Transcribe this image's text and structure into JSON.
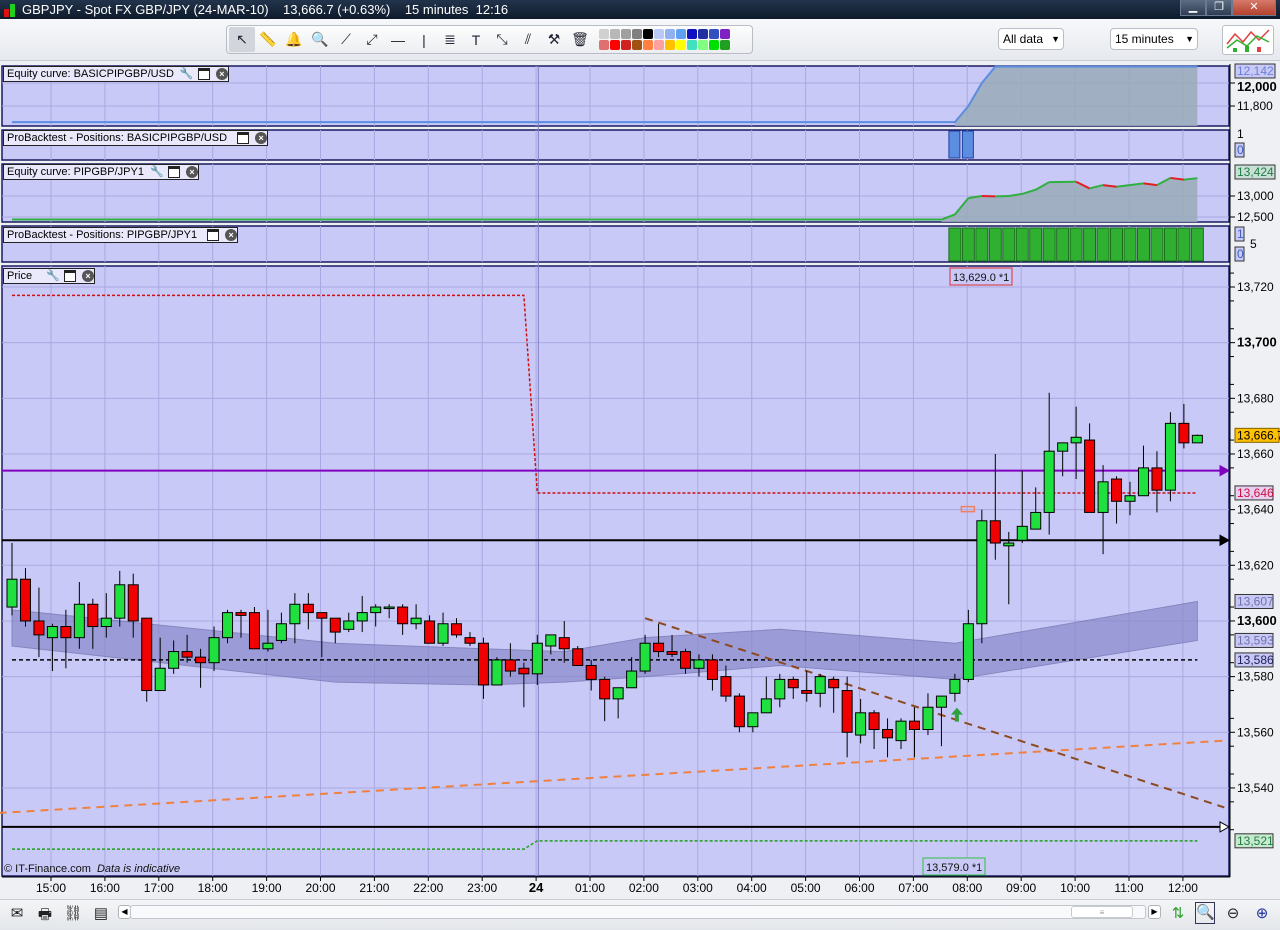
{
  "window": {
    "title": "GBPJPY - Spot FX GBP/JPY (24-MAR-10)    13,666.7 (+0.63%)    15 minutes  12:16",
    "buttons": [
      "minimize",
      "restore",
      "close"
    ]
  },
  "toolbar": {
    "tools": [
      {
        "icon": "pointer-icon",
        "glyph": "↖"
      },
      {
        "icon": "ruler-icon",
        "glyph": "📏"
      },
      {
        "icon": "alarm-bell-icon",
        "glyph": "🔔"
      },
      {
        "icon": "zoom-in-icon",
        "glyph": "🔍"
      },
      {
        "icon": "trend-line-icon",
        "glyph": "⟋"
      },
      {
        "icon": "segment-icon",
        "glyph": "⤢"
      },
      {
        "icon": "horizontal-line-icon",
        "glyph": "—"
      },
      {
        "icon": "vertical-line-icon",
        "glyph": "|"
      },
      {
        "icon": "fibonacci-icon",
        "glyph": "≣"
      },
      {
        "icon": "text-tool-icon",
        "glyph": "T"
      },
      {
        "icon": "channel-icon",
        "glyph": "⤡"
      },
      {
        "icon": "parallel-lines-icon",
        "glyph": "⫽"
      },
      {
        "icon": "tools-icon",
        "glyph": "⚒"
      },
      {
        "icon": "trash-icon",
        "glyph": "🗑"
      }
    ],
    "palette": [
      "#d0d0d0",
      "#b8b8b8",
      "#a0a0a0",
      "#808080",
      "#000000",
      "#b8c8f8",
      "#90b0f0",
      "#60a0f0",
      "#1010c0",
      "#2030a0",
      "#3050c0",
      "#8020c0",
      "#e07070",
      "#ff0000",
      "#d02020",
      "#a05010",
      "#ff8040",
      "#ffa0a0",
      "#ffc000",
      "#ffff00",
      "#40e0c0",
      "#80ff80",
      "#00e000",
      "#20a020"
    ],
    "period_select": "All data",
    "interval_select": "15 minutes"
  },
  "panels": {
    "equity1": {
      "title": "Equity curve: BASICPIPGBP/USD",
      "ticks": [
        "12,000",
        "11,800"
      ],
      "tick_values": [
        12000,
        11800
      ],
      "last_label": "12,142",
      "color": "#5b8de0",
      "values": [
        {
          "t": "14:15",
          "v": 11660
        },
        {
          "t": "07:45",
          "v": 11660
        },
        {
          "t": "08:00",
          "v": 11800
        },
        {
          "t": "08:15",
          "v": 12000
        },
        {
          "t": "08:30",
          "v": 12142
        },
        {
          "t": "12:15",
          "v": 12142
        }
      ]
    },
    "positions1": {
      "title": "ProBacktest - Positions: BASICPIPGBP/USD",
      "labels": [
        "1",
        "0"
      ],
      "color": "#5b8de0",
      "bars": [
        "07:45",
        "08:00"
      ]
    },
    "equity2": {
      "title": "Equity curve: PIPGBP/JPY1",
      "ticks": [
        "13,000",
        "12,500"
      ],
      "tick_values": [
        13000,
        12500
      ],
      "last_label": "13,424",
      "up_color": "#30b040",
      "down_color": "#e02020",
      "values": [
        {
          "t": "14:15",
          "v": 12440
        },
        {
          "t": "07:30",
          "v": 12440
        },
        {
          "t": "07:45",
          "v": 12560
        },
        {
          "t": "08:00",
          "v": 12950
        },
        {
          "t": "08:15",
          "v": 13000
        },
        {
          "t": "08:30",
          "v": 12990
        },
        {
          "t": "08:45",
          "v": 13000
        },
        {
          "t": "09:00",
          "v": 13050
        },
        {
          "t": "09:15",
          "v": 13150
        },
        {
          "t": "09:30",
          "v": 13330
        },
        {
          "t": "10:00",
          "v": 13340
        },
        {
          "t": "10:15",
          "v": 13180
        },
        {
          "t": "10:30",
          "v": 13260
        },
        {
          "t": "10:45",
          "v": 13220
        },
        {
          "t": "11:15",
          "v": 13300
        },
        {
          "t": "11:30",
          "v": 13260
        },
        {
          "t": "11:45",
          "v": 13430
        },
        {
          "t": "12:00",
          "v": 13390
        },
        {
          "t": "12:15",
          "v": 13424
        }
      ]
    },
    "positions2": {
      "title": "ProBacktest - Positions: PIPGBP/JPY1",
      "labels": [
        "1",
        "5",
        "0"
      ],
      "color": "#30b030",
      "bars_from": "07:45",
      "bars_to": "12:15"
    },
    "price": {
      "title": "Price"
    }
  },
  "chart_data": {
    "type": "candlestick",
    "instrument": "GBPJPY",
    "interval": "15 minutes",
    "start_time": "14:15",
    "ylim": [
      13515,
      13730
    ],
    "yticks": [
      13720,
      13700,
      13680,
      13660,
      13640,
      13620,
      13600,
      13580,
      13560,
      13540
    ],
    "ytick_labels": [
      "13,720",
      "13,700",
      "13,680",
      "13,660",
      "13,640",
      "13,620",
      "13,600",
      "13,580",
      "13,560",
      "13,540"
    ],
    "ytick_bold": [
      13700,
      13600
    ],
    "xtick_labels": [
      "15:00",
      "16:00",
      "17:00",
      "18:00",
      "19:00",
      "20:00",
      "21:00",
      "22:00",
      "23:00",
      "24",
      "01:00",
      "02:00",
      "03:00",
      "04:00",
      "05:00",
      "06:00",
      "07:00",
      "08:00",
      "09:00",
      "10:00",
      "11:00",
      "12:00"
    ],
    "up_color": "#20e040",
    "down_color": "#f00000",
    "ohlc": [
      [
        13605,
        13628,
        13602,
        13615
      ],
      [
        13615,
        13619,
        13598,
        13600
      ],
      [
        13600,
        13612,
        13587,
        13595
      ],
      [
        13594,
        13599,
        13582,
        13598
      ],
      [
        13598,
        13604,
        13583,
        13594
      ],
      [
        13594,
        13614,
        13590,
        13606
      ],
      [
        13606,
        13608,
        13590,
        13598
      ],
      [
        13598,
        13610,
        13594,
        13601
      ],
      [
        13601,
        13618,
        13598,
        13613
      ],
      [
        13613,
        13617,
        13594,
        13600
      ],
      [
        13601,
        13601,
        13571,
        13575
      ],
      [
        13575,
        13594,
        13575,
        13583
      ],
      [
        13583,
        13593,
        13581,
        13589
      ],
      [
        13589,
        13595,
        13585,
        13587
      ],
      [
        13587,
        13590,
        13576,
        13585
      ],
      [
        13585,
        13598,
        13582,
        13594
      ],
      [
        13594,
        13604,
        13592,
        13603
      ],
      [
        13603,
        13604,
        13594,
        13602
      ],
      [
        13603,
        13605,
        13590,
        13590
      ],
      [
        13590,
        13604,
        13589,
        13592
      ],
      [
        13593,
        13603,
        13592,
        13599
      ],
      [
        13599,
        13610,
        13592,
        13606
      ],
      [
        13606,
        13610,
        13597,
        13603
      ],
      [
        13603,
        13603,
        13587,
        13601
      ],
      [
        13601,
        13601,
        13592,
        13596
      ],
      [
        13597,
        13603,
        13596,
        13600
      ],
      [
        13600,
        13609,
        13596,
        13603
      ],
      [
        13603,
        13606,
        13598,
        13605
      ],
      [
        13605,
        13606,
        13601,
        13605
      ],
      [
        13605,
        13606,
        13595,
        13599
      ],
      [
        13599,
        13606,
        13597,
        13601
      ],
      [
        13600,
        13602,
        13592,
        13592
      ],
      [
        13592,
        13603,
        13591,
        13599
      ],
      [
        13599,
        13601,
        13594,
        13595
      ],
      [
        13594,
        13596,
        13591,
        13592
      ],
      [
        13592,
        13594,
        13572,
        13577
      ],
      [
        13577,
        13587,
        13577,
        13586
      ],
      [
        13586,
        13592,
        13580,
        13582
      ],
      [
        13583,
        13585,
        13569,
        13581
      ],
      [
        13581,
        13595,
        13577,
        13592
      ],
      [
        13591,
        13595,
        13588,
        13595
      ],
      [
        13594,
        13600,
        13585,
        13590
      ],
      [
        13590,
        13591,
        13584,
        13584
      ],
      [
        13584,
        13586,
        13575,
        13579
      ],
      [
        13579,
        13580,
        13564,
        13572
      ],
      [
        13572,
        13576,
        13565,
        13576
      ],
      [
        13576,
        13587,
        13576,
        13582
      ],
      [
        13582,
        13595,
        13581,
        13592
      ],
      [
        13592,
        13599,
        13587,
        13589
      ],
      [
        13589,
        13595,
        13587,
        13588
      ],
      [
        13589,
        13590,
        13581,
        13583
      ],
      [
        13583,
        13588,
        13580,
        13586
      ],
      [
        13586,
        13588,
        13575,
        13579
      ],
      [
        13580,
        13584,
        13571,
        13573
      ],
      [
        13573,
        13574,
        13560,
        13562
      ],
      [
        13562,
        13567,
        13560,
        13567
      ],
      [
        13567,
        13580,
        13567,
        13572
      ],
      [
        13572,
        13581,
        13569,
        13579
      ],
      [
        13579,
        13580,
        13572,
        13576
      ],
      [
        13575,
        13582,
        13571,
        13574
      ],
      [
        13574,
        13581,
        13569,
        13580
      ],
      [
        13579,
        13580,
        13567,
        13576
      ],
      [
        13575,
        13580,
        13551,
        13560
      ],
      [
        13559,
        13572,
        13556,
        13567
      ],
      [
        13567,
        13568,
        13554,
        13561
      ],
      [
        13561,
        13565,
        13551,
        13558
      ],
      [
        13557,
        13565,
        13554,
        13564
      ],
      [
        13564,
        13569,
        13551,
        13561
      ],
      [
        13561,
        13574,
        13559,
        13569
      ],
      [
        13569,
        13573,
        13555,
        13573
      ],
      [
        13574,
        13581,
        13571,
        13579
      ],
      [
        13579,
        13604,
        13578,
        13599
      ],
      [
        13599,
        13640,
        13592,
        13636
      ],
      [
        13636,
        13660,
        13622,
        13628
      ],
      [
        13627,
        13632,
        13606,
        13628
      ],
      [
        13629,
        13654,
        13628,
        13634
      ],
      [
        13633,
        13648,
        13633,
        13639
      ],
      [
        13639,
        13682,
        13631,
        13661
      ],
      [
        13661,
        13664,
        13652,
        13664
      ],
      [
        13664,
        13677,
        13651,
        13666
      ],
      [
        13665,
        13671,
        13639,
        13639
      ],
      [
        13639,
        13656,
        13624,
        13650
      ],
      [
        13651,
        13652,
        13635,
        13643
      ],
      [
        13643,
        13650,
        13638,
        13645
      ],
      [
        13645,
        13663,
        13645,
        13655
      ],
      [
        13655,
        13661,
        13639,
        13647
      ],
      [
        13647,
        13675,
        13643,
        13671
      ],
      [
        13671,
        13678,
        13662,
        13664
      ],
      [
        13664,
        13667,
        13664,
        13666.7
      ]
    ],
    "band": {
      "color": "#8888cc",
      "points": [
        {
          "t": "14:15",
          "upper": 13604,
          "lower": 13591
        },
        {
          "t": "20:15",
          "upper": 13592,
          "lower": 13578
        },
        {
          "t": "23:00",
          "upper": 13590,
          "lower": 13577
        },
        {
          "t": "00:30",
          "upper": 13589,
          "lower": 13578
        },
        {
          "t": "02:00",
          "upper": 13594,
          "lower": 13580
        },
        {
          "t": "04:30",
          "upper": 13597,
          "lower": 13584
        },
        {
          "t": "07:45",
          "upper": 13592,
          "lower": 13579
        },
        {
          "t": "12:15",
          "upper": 13607,
          "lower": 13593
        }
      ]
    },
    "lines": [
      {
        "name": "stop-level-line",
        "color": "#d01010",
        "style": "dotted",
        "points": [
          {
            "t": "14:15",
            "v": 13717
          },
          {
            "t": "23:45",
            "v": 13717
          },
          {
            "t": "00:00",
            "v": 13646
          },
          {
            "t": "12:15",
            "v": 13646
          }
        ]
      },
      {
        "name": "purple-horizontal-line",
        "color": "#8000c0",
        "style": "solid",
        "level": 13654,
        "arrow": true
      },
      {
        "name": "entry-horizontal-line",
        "color": "#000000",
        "style": "solid",
        "level": 13629,
        "arrow": true
      },
      {
        "name": "black-dotted-line",
        "color": "#000000",
        "style": "dashed",
        "points": [
          {
            "t": "14:15",
            "v": 13586
          },
          {
            "t": "12:15",
            "v": 13586
          }
        ]
      },
      {
        "name": "lower-horizontal-line",
        "color": "#000000",
        "style": "solid",
        "level": 13526,
        "arrow": "hollow"
      },
      {
        "name": "green-dotted-line",
        "color": "#20a020",
        "style": "dotted",
        "points": [
          {
            "t": "14:15",
            "v": 13518
          },
          {
            "t": "23:45",
            "v": 13518
          },
          {
            "t": "00:00",
            "v": 13521
          },
          {
            "t": "12:15",
            "v": 13521
          }
        ]
      },
      {
        "name": "orange-moving-average-line",
        "color": "#f08040",
        "style": "longdash",
        "points": [
          {
            "t": "14:00",
            "v": 13531
          },
          {
            "t": "12:45",
            "v": 13557
          }
        ]
      },
      {
        "name": "brown-trend-line",
        "color": "#8b4a20",
        "style": "longdash",
        "points": [
          {
            "t": "02:00",
            "v": 13601
          },
          {
            "t": "12:45",
            "v": 13533
          }
        ]
      }
    ],
    "day_separator": "00:00",
    "buy_signal": {
      "t": "07:45",
      "v": 13566,
      "color": "#30a040"
    },
    "order_marker": {
      "t": "08:00",
      "v": 13640,
      "color": "#f08060"
    },
    "tags": [
      {
        "value": 13666.7,
        "text": "13,666.7",
        "bg": "#ffc000",
        "fg": "#000000",
        "border": "#806000"
      },
      {
        "value": 13646,
        "text": "13,646",
        "bg": "#e8d0f0",
        "fg": "#d01040",
        "border": "#333333"
      },
      {
        "value": 13607,
        "text": "13,607",
        "bg": "#c8c8f4",
        "fg": "#7070b0",
        "border": "#333333"
      },
      {
        "value": 13593,
        "text": "13,593",
        "bg": "#c8c8f4",
        "fg": "#7070b0",
        "border": "#333333"
      },
      {
        "value": 13586,
        "text": "13,586",
        "bg": "#c8c8f4",
        "fg": "#202060",
        "border": "#333333"
      },
      {
        "value": 13521,
        "text": "13,521",
        "bg": "#c8e8d0",
        "fg": "#208040",
        "border": "#333333"
      }
    ],
    "annotations": [
      {
        "text": "13,629.0 *1",
        "border": "#e03030"
      },
      {
        "text": "13,579.0 *1",
        "border": "#30c040"
      }
    ]
  },
  "footer": {
    "credit": "© IT-Finance.com",
    "note": "Data is indicative"
  },
  "bottombar": {
    "icons": [
      "mail-icon",
      "print-icon",
      "link-icon",
      "export-icon"
    ],
    "right_icons": [
      "chart-type-icon",
      "auto-zoom-icon",
      "zoom-out-icon",
      "zoom-in-icon"
    ]
  }
}
